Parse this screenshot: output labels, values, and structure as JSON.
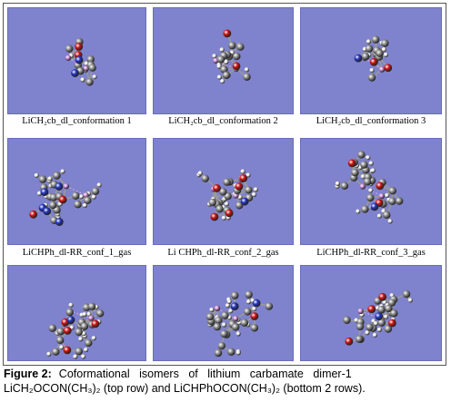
{
  "row1_captions": [
    "LiCH₂cb_dl_conformation 1",
    "LiCH₂cb_dl_conformation 2",
    "LiCH₂cb_dl_conformation 3"
  ],
  "row2_captions": [
    "LiCHPh_dl-RR_conf_1_gas",
    "Li CHPh_dl-RR_conf_2_gas",
    "LiCHPh_dl-RR_conf_3_gas"
  ],
  "caption": {
    "figure_label": "Figure 2:",
    "line1_text": "Coformational isomers of lithium carbamate dimer-1",
    "line2_text": "LiCH₂OCON(CH₃)₂ (top row) and LiCHPhOCON(CH₃)₂ (bottom 2 rows)."
  },
  "colors": {
    "panel_bg": "#7f82cc",
    "carbon": "#8c8c8c",
    "hydrogen": "#eeeeee",
    "oxygen": "#cc1111",
    "nitrogen": "#2233bb",
    "lithium": "#c98bd6"
  },
  "molecule_panels": [
    {
      "name": "molecule-panel-row1-1"
    },
    {
      "name": "molecule-panel-row1-2"
    },
    {
      "name": "molecule-panel-row1-3"
    },
    {
      "name": "molecule-panel-row2-1"
    },
    {
      "name": "molecule-panel-row2-2"
    },
    {
      "name": "molecule-panel-row2-3"
    },
    {
      "name": "molecule-panel-row3-1"
    },
    {
      "name": "molecule-panel-row3-2"
    },
    {
      "name": "molecule-panel-row3-3"
    }
  ]
}
